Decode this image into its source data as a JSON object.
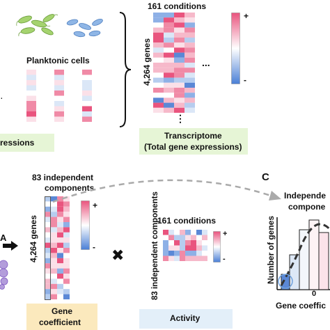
{
  "top": {
    "conditions_label": "161 conditions",
    "genes_label": "4,264 genes",
    "planktonic_label": "Planktonic cells",
    "ellipsis_h": "...",
    "ellipsis_v": "⋮",
    "ellipsis_left": "·",
    "expressions_box": "ressions",
    "transcriptome_line1": "Transcriptome",
    "transcriptome_line2": "(Total gene expressions)",
    "scale_plus": "+",
    "scale_minus": "-"
  },
  "middle": {
    "components_line1": "83 independent",
    "components_line2": "components",
    "genes_label": "4,264 genes",
    "scale_plus": "+",
    "scale_minus": "-",
    "multiply": "✖",
    "activity_conditions": "161 conditions",
    "activity_components": "83 independent components",
    "gene_coef_line1": "Gene",
    "gene_coef_line2": "coefficient",
    "activity_label": "Activity",
    "arrow_letter": "A"
  },
  "panel_c": {
    "letter": "C",
    "title_line1": "Independe",
    "title_line2": "compone",
    "ylabel": "Number of genes",
    "xlabel": "Gene coeffic",
    "zero_tick": "0"
  },
  "colors": {
    "pink": "#e9547e",
    "blue": "#4a7fd6",
    "green_box": "#e6f5d6",
    "yellow_box": "#fbe9bd",
    "blue_box": "#e3eff9",
    "bacteria_green": "#9ccc65",
    "bacteria_blue": "#6fa0dc"
  }
}
